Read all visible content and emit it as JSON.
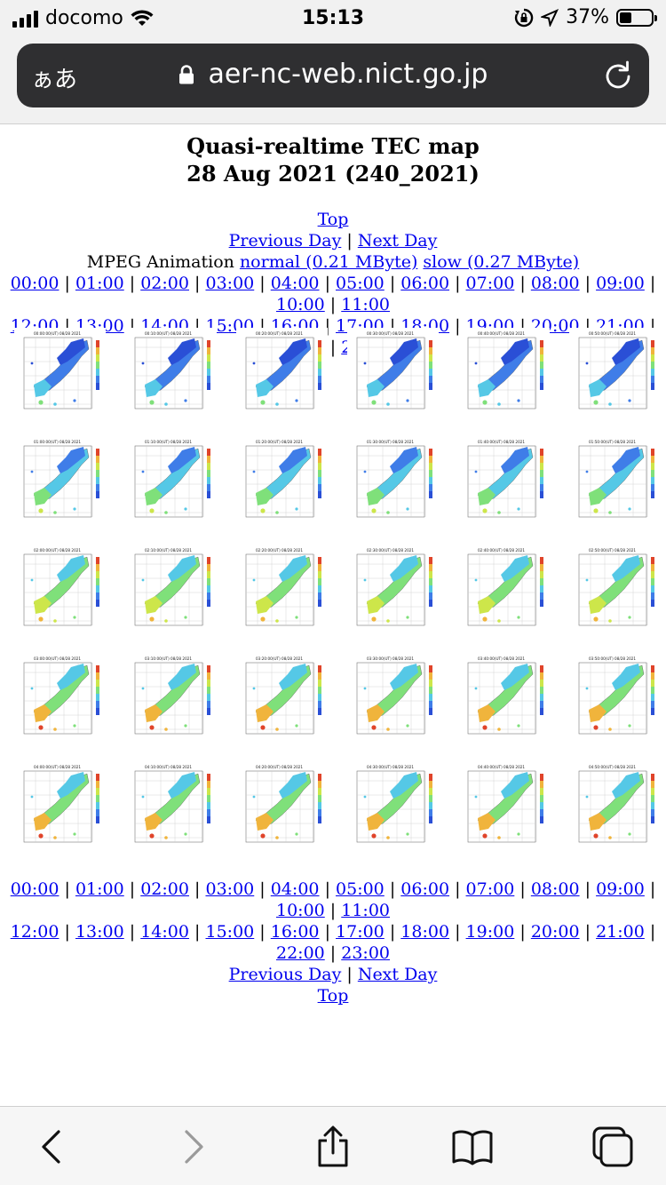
{
  "status_bar": {
    "carrier": "docomo",
    "time": "15:13",
    "battery_percent": "37%",
    "battery_level": 0.37
  },
  "browser": {
    "text_size_label": "ぁあ",
    "url": "aer-nc-web.nict.go.jp"
  },
  "page": {
    "title_line1": "Quasi-realtime TEC map",
    "title_line2": "28 Aug 2021 (240_2021)",
    "top_link": "Top",
    "previous_day": "Previous Day",
    "next_day": "Next Day",
    "separator": "|",
    "mpeg_label": "MPEG Animation",
    "mpeg_normal": "normal (0.21 MByte)",
    "mpeg_slow": "slow (0.27 MByte)",
    "hours_row1": [
      "00:00",
      "01:00",
      "02:00",
      "03:00",
      "04:00",
      "05:00",
      "06:00",
      "07:00",
      "08:00",
      "09:00",
      "10:00",
      "11:00"
    ],
    "hours_row2": [
      "12:00",
      "13:00",
      "14:00",
      "15:00",
      "16:00",
      "17:00",
      "18:00",
      "19:00",
      "20:00",
      "21:00",
      "22:00",
      "23:00"
    ]
  },
  "maps": [
    [
      "00:00:00(UT) 08/28 2021",
      "00:10:00(UT) 08/28 2021",
      "00:20:00(UT) 08/28 2021",
      "00:30:00(UT) 08/28 2021",
      "00:40:00(UT) 08/28 2021",
      "00:50:00(UT) 08/28 2021"
    ],
    [
      "01:00:00(UT) 08/28 2021",
      "01:10:00(UT) 08/28 2021",
      "01:20:00(UT) 08/28 2021",
      "01:30:00(UT) 08/28 2021",
      "01:40:00(UT) 08/28 2021",
      "01:50:00(UT) 08/28 2021"
    ],
    [
      "02:00:00(UT) 08/28 2021",
      "02:10:00(UT) 08/28 2021",
      "02:20:00(UT) 08/28 2021",
      "02:30:00(UT) 08/28 2021",
      "02:40:00(UT) 08/28 2021",
      "02:50:00(UT) 08/28 2021"
    ],
    [
      "03:00:00(UT) 08/28 2021",
      "03:10:00(UT) 08/28 2021",
      "03:20:00(UT) 08/28 2021",
      "03:30:00(UT) 08/28 2021",
      "03:40:00(UT) 08/28 2021",
      "03:50:00(UT) 08/28 2021"
    ],
    [
      "04:00:00(UT) 08/28 2021",
      "04:10:00(UT) 08/28 2021",
      "04:20:00(UT) 08/28 2021",
      "04:30:00(UT) 08/28 2021",
      "04:40:00(UT) 08/28 2021",
      "04:50:00(UT) 08/28 2021"
    ]
  ],
  "map_colors": [
    "#2a4fd6",
    "#3f7de8",
    "#55c8e6",
    "#7fe07a",
    "#cde64a",
    "#f0b43c",
    "#e0442a"
  ]
}
